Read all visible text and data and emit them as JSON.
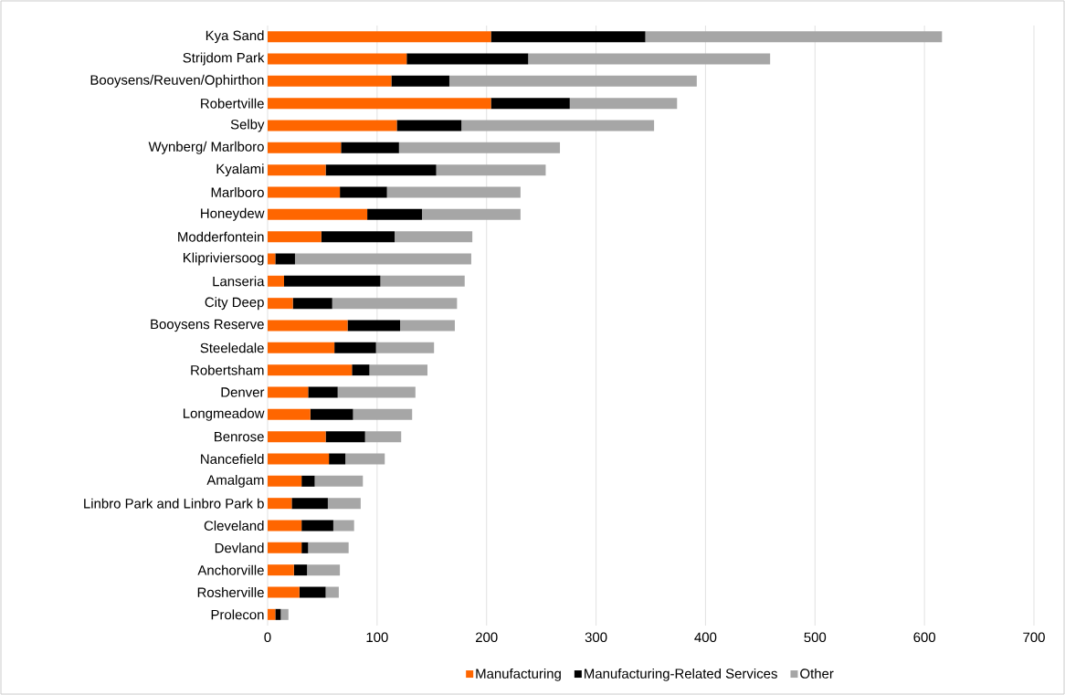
{
  "chart_data": {
    "type": "bar",
    "orientation": "horizontal",
    "stacked": true,
    "categories": [
      "Kya Sand",
      "Strijdom Park",
      "Booysens/Reuven/Ophirthon",
      "Robertville",
      "Selby",
      "Wynberg/ Marlboro",
      "Kyalami",
      "Marlboro",
      "Honeydew",
      "Modderfontein",
      "Klipriviersoog",
      "Lanseria",
      "City Deep",
      "Booysens Reserve",
      "Steeledale",
      "Robertsham",
      "Denver",
      "Longmeadow",
      "Benrose",
      "Nancefield",
      "Amalgam",
      "Linbro Park and Linbro Park b",
      "Cleveland",
      "Devland",
      "Anchorville",
      "Rosherville",
      "Prolecon"
    ],
    "series": [
      {
        "name": "Manufacturing",
        "color": "#ff6600",
        "values": [
          204,
          127,
          113,
          204,
          118,
          67,
          53,
          66,
          91,
          49,
          7,
          15,
          23,
          73,
          61,
          77,
          37,
          39,
          53,
          56,
          31,
          22,
          31,
          31,
          24,
          29,
          7
        ]
      },
      {
        "name": "Manufacturing-Related Services",
        "color": "#000000",
        "values": [
          141,
          111,
          53,
          72,
          59,
          53,
          101,
          43,
          50,
          67,
          18,
          88,
          36,
          48,
          38,
          16,
          27,
          39,
          36,
          15,
          12,
          33,
          29,
          6,
          12,
          24,
          5
        ]
      },
      {
        "name": "Other",
        "color": "#a6a6a6",
        "values": [
          271,
          221,
          226,
          98,
          176,
          147,
          100,
          122,
          90,
          71,
          161,
          77,
          114,
          50,
          53,
          53,
          71,
          54,
          33,
          36,
          44,
          30,
          19,
          37,
          30,
          12,
          7
        ]
      }
    ],
    "xlim": [
      0,
      700
    ],
    "xticks": [
      0,
      100,
      200,
      300,
      400,
      500,
      600,
      700
    ],
    "grid": "x",
    "legend": "bottom"
  }
}
